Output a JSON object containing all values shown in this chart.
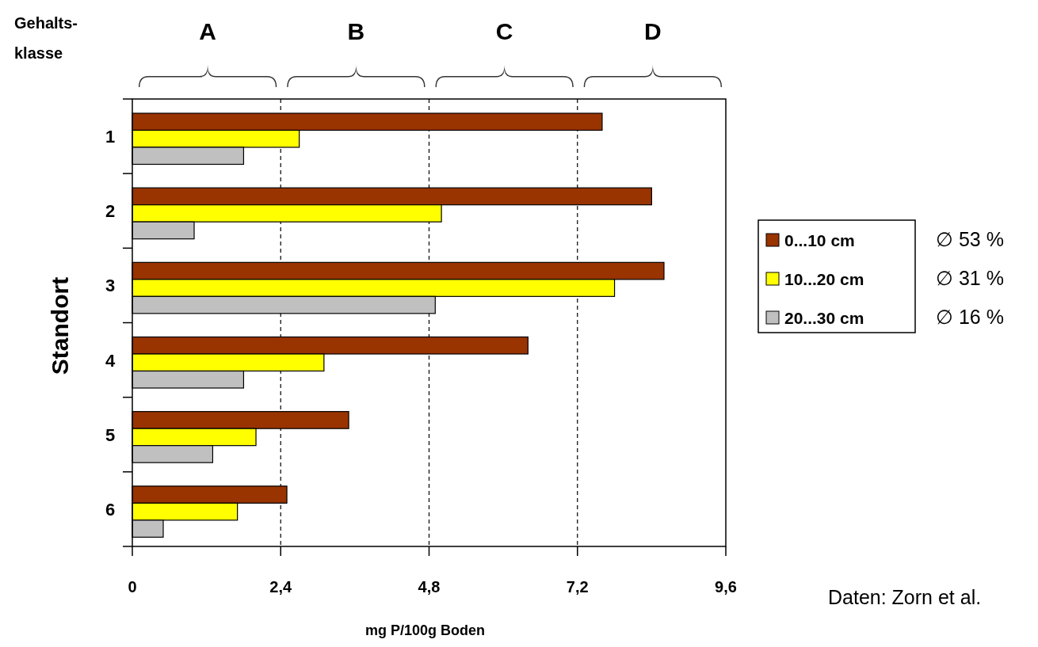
{
  "chart_data": {
    "type": "bar",
    "orientation": "horizontal",
    "xlabel": "mg P/100g Boden",
    "ylabel": "Standort",
    "categories": [
      "1",
      "2",
      "3",
      "4",
      "5",
      "6"
    ],
    "series": [
      {
        "name": "0...10 cm",
        "color": "#993300",
        "values": [
          7.6,
          8.4,
          8.6,
          6.4,
          3.5,
          2.5
        ]
      },
      {
        "name": "10...20 cm",
        "color": "#ffff00",
        "values": [
          2.7,
          5.0,
          7.8,
          3.1,
          2.0,
          1.7
        ]
      },
      {
        "name": "20...30 cm",
        "color": "#c0c0c0",
        "values": [
          1.8,
          1.0,
          4.9,
          1.8,
          1.3,
          0.5
        ]
      }
    ],
    "xlim": [
      0,
      9.6
    ],
    "xticks": [
      0,
      {
        "value": 2.4,
        "label": "2,4"
      },
      {
        "value": 4.8,
        "label": "4,8"
      },
      {
        "value": 7.2,
        "label": "7,2"
      },
      {
        "value": 9.6,
        "label": "9,6"
      }
    ],
    "ref_lines": [
      {
        "axis": "x",
        "value": 2.4,
        "line_style": "dashed"
      },
      {
        "axis": "x",
        "value": 4.8,
        "line_style": "dashed"
      },
      {
        "axis": "x",
        "value": 7.2,
        "line_style": "dashed"
      }
    ],
    "annotations": [
      "Gehalts-klasse",
      "∅ 53 %",
      "∅ 31 %",
      "∅ 16 %",
      "Daten: Zorn et al.",
      "A",
      "B",
      "C",
      "D"
    ],
    "legend": "right",
    "grid": false
  }
}
